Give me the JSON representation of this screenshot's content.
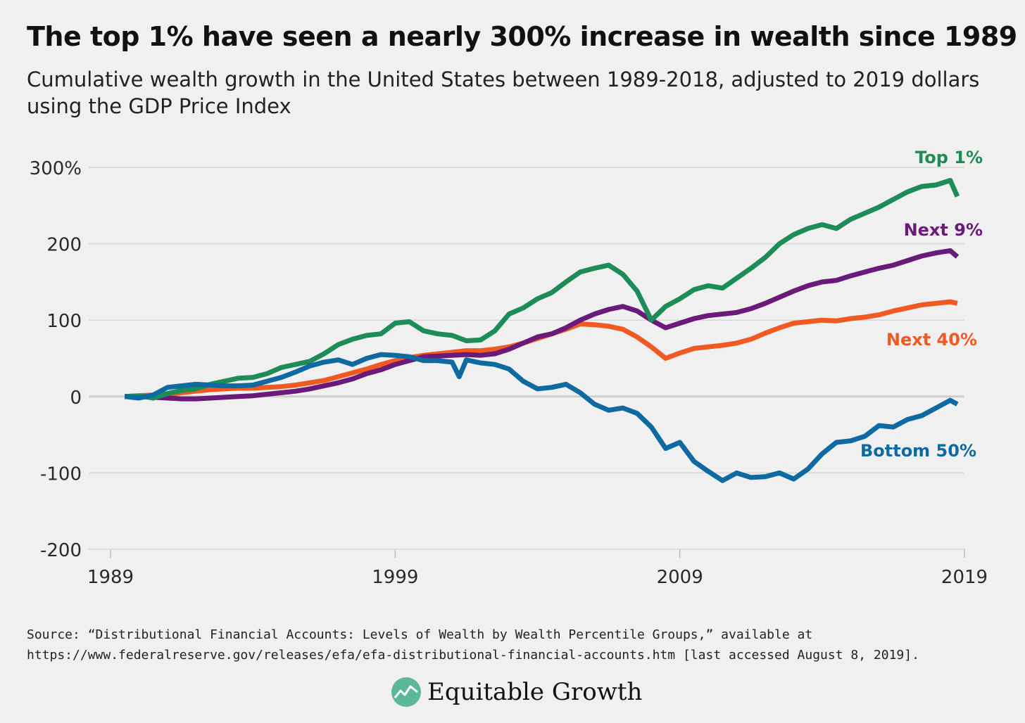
{
  "title": "The top 1% have seen a nearly 300% increase in wealth since 1989",
  "subtitle": "Cumulative wealth growth in the United States between 1989-2018, adjusted to 2019 dollars using the GDP Price Index",
  "source": {
    "line1": "Source: “Distributional Financial Accounts: Levels of Wealth by Wealth Percentile Groups,” available at",
    "line2": "https://www.federalreserve.gov/releases/efa/efa-distributional-financial-accounts.htm [last accessed August 8, 2019]."
  },
  "brand": {
    "name": "Equitable Growth",
    "icon": "equitable-growth-logo-icon"
  },
  "colors": {
    "top1": "#1e8c57",
    "next9": "#6a1b7a",
    "next40": "#f05a22",
    "bottom50": "#0e6aa0",
    "grid": "#d6d6d6",
    "zero": "#cfcfcf",
    "axis_text": "#2a2a2a"
  },
  "chart_data": {
    "type": "line",
    "xlim": [
      1989,
      2019
    ],
    "ylim": [
      -200,
      300
    ],
    "y_ticks": [
      300,
      200,
      100,
      0,
      -100,
      -200
    ],
    "y_tick_labels": [
      "300%",
      "200",
      "100",
      "0",
      "-100",
      "-200"
    ],
    "x_ticks": [
      1989,
      1999,
      2009,
      2019
    ],
    "x_tick_labels": [
      "1989",
      "1999",
      "2009",
      "2019"
    ],
    "grid": "horizontal",
    "series": [
      {
        "name": "Top 1%",
        "key": "top1",
        "x": [
          1989.5,
          1990.0,
          1990.5,
          1991.0,
          1991.5,
          1992.0,
          1992.5,
          1993.0,
          1993.5,
          1994.0,
          1994.5,
          1995.0,
          1995.5,
          1996.0,
          1996.5,
          1997.0,
          1997.5,
          1998.0,
          1998.5,
          1999.0,
          1999.5,
          2000.0,
          2000.5,
          2001.0,
          2001.5,
          2002.0,
          2002.5,
          2003.0,
          2003.5,
          2004.0,
          2004.5,
          2005.0,
          2005.5,
          2006.0,
          2006.5,
          2007.0,
          2007.5,
          2008.0,
          2008.5,
          2009.0,
          2009.5,
          2010.0,
          2010.5,
          2011.0,
          2011.5,
          2012.0,
          2012.5,
          2013.0,
          2013.5,
          2014.0,
          2014.5,
          2015.0,
          2015.5,
          2016.0,
          2016.5,
          2017.0,
          2017.5,
          2018.0,
          2018.5,
          2018.75
        ],
        "values": [
          0,
          1,
          -2,
          4,
          8,
          10,
          16,
          20,
          24,
          25,
          30,
          38,
          42,
          46,
          56,
          68,
          75,
          80,
          82,
          96,
          98,
          86,
          82,
          80,
          73,
          74,
          86,
          108,
          116,
          128,
          136,
          150,
          163,
          168,
          172,
          160,
          138,
          100,
          118,
          128,
          140,
          145,
          142,
          155,
          168,
          182,
          200,
          212,
          220,
          225,
          220,
          232,
          240,
          248,
          258,
          268,
          275,
          277,
          283,
          262
        ]
      },
      {
        "name": "Next 9%",
        "key": "next9",
        "x": [
          1989.5,
          1990.0,
          1990.5,
          1991.0,
          1991.5,
          1992.0,
          1992.5,
          1993.0,
          1993.5,
          1994.0,
          1994.5,
          1995.0,
          1995.5,
          1996.0,
          1996.5,
          1997.0,
          1997.5,
          1998.0,
          1998.5,
          1999.0,
          1999.5,
          2000.0,
          2000.5,
          2001.0,
          2001.5,
          2002.0,
          2002.5,
          2003.0,
          2003.5,
          2004.0,
          2004.5,
          2005.0,
          2005.5,
          2006.0,
          2006.5,
          2007.0,
          2007.5,
          2008.0,
          2008.5,
          2009.0,
          2009.5,
          2010.0,
          2010.5,
          2011.0,
          2011.5,
          2012.0,
          2012.5,
          2013.0,
          2013.5,
          2014.0,
          2014.5,
          2015.0,
          2015.5,
          2016.0,
          2016.5,
          2017.0,
          2017.5,
          2018.0,
          2018.5,
          2018.75
        ],
        "values": [
          0,
          0,
          -1,
          -2,
          -3,
          -3,
          -2,
          -1,
          0,
          1,
          3,
          5,
          7,
          10,
          14,
          18,
          23,
          30,
          35,
          42,
          47,
          52,
          53,
          54,
          55,
          54,
          56,
          62,
          70,
          78,
          82,
          90,
          100,
          108,
          114,
          118,
          112,
          100,
          90,
          96,
          102,
          106,
          108,
          110,
          115,
          122,
          130,
          138,
          145,
          150,
          152,
          158,
          163,
          168,
          172,
          178,
          184,
          188,
          191,
          183
        ]
      },
      {
        "name": "Next 40%",
        "key": "next40",
        "x": [
          1989.5,
          1990.0,
          1990.5,
          1991.0,
          1991.5,
          1992.0,
          1992.5,
          1993.0,
          1993.5,
          1994.0,
          1994.5,
          1995.0,
          1995.5,
          1996.0,
          1996.5,
          1997.0,
          1997.5,
          1998.0,
          1998.5,
          1999.0,
          1999.5,
          2000.0,
          2000.5,
          2001.0,
          2001.5,
          2002.0,
          2002.5,
          2003.0,
          2003.5,
          2004.0,
          2004.5,
          2005.0,
          2005.5,
          2006.0,
          2006.5,
          2007.0,
          2007.5,
          2008.0,
          2008.5,
          2009.0,
          2009.5,
          2010.0,
          2010.5,
          2011.0,
          2011.5,
          2012.0,
          2012.5,
          2013.0,
          2013.5,
          2014.0,
          2014.5,
          2015.0,
          2015.5,
          2016.0,
          2016.5,
          2017.0,
          2017.5,
          2018.0,
          2018.5,
          2018.75
        ],
        "values": [
          0,
          1,
          2,
          3,
          5,
          7,
          9,
          10,
          11,
          11,
          12,
          13,
          15,
          18,
          21,
          26,
          31,
          36,
          42,
          47,
          51,
          54,
          56,
          58,
          60,
          60,
          62,
          65,
          70,
          76,
          82,
          88,
          95,
          94,
          92,
          88,
          78,
          65,
          50,
          57,
          63,
          65,
          67,
          70,
          75,
          83,
          90,
          96,
          98,
          100,
          99,
          102,
          104,
          107,
          112,
          116,
          120,
          122,
          124,
          122
        ]
      },
      {
        "name": "Bottom 50%",
        "key": "bottom50",
        "x": [
          1989.5,
          1990.0,
          1990.5,
          1991.0,
          1991.5,
          1992.0,
          1992.5,
          1993.0,
          1993.5,
          1994.0,
          1994.5,
          1995.0,
          1995.5,
          1996.0,
          1996.5,
          1997.0,
          1997.5,
          1998.0,
          1998.5,
          1999.0,
          1999.5,
          2000.0,
          2000.5,
          2001.0,
          2001.25,
          2001.5,
          2002.0,
          2002.5,
          2003.0,
          2003.5,
          2004.0,
          2004.5,
          2005.0,
          2005.5,
          2006.0,
          2006.5,
          2007.0,
          2007.5,
          2008.0,
          2008.5,
          2009.0,
          2009.5,
          2010.0,
          2010.5,
          2011.0,
          2011.5,
          2012.0,
          2012.5,
          2013.0,
          2013.5,
          2014.0,
          2014.5,
          2015.0,
          2015.5,
          2016.0,
          2016.5,
          2017.0,
          2017.5,
          2018.0,
          2018.5,
          2018.75
        ],
        "values": [
          0,
          -2,
          2,
          12,
          14,
          16,
          15,
          14,
          14,
          15,
          20,
          25,
          32,
          40,
          45,
          48,
          42,
          50,
          55,
          54,
          52,
          47,
          47,
          45,
          26,
          48,
          44,
          42,
          36,
          20,
          10,
          12,
          16,
          5,
          -10,
          -18,
          -15,
          -22,
          -40,
          -68,
          -60,
          -85,
          -98,
          -110,
          -100,
          -106,
          -105,
          -100,
          -108,
          -95,
          -75,
          -60,
          -58,
          -52,
          -38,
          -40,
          -30,
          -25,
          -15,
          -5,
          -10
        ]
      }
    ],
    "end_labels": [
      {
        "series": "top1",
        "text": "Top 1%"
      },
      {
        "series": "next9",
        "text": "Next 9%"
      },
      {
        "series": "next40",
        "text": "Next 40%"
      },
      {
        "series": "bottom50",
        "text": "Bottom 50%"
      }
    ]
  }
}
